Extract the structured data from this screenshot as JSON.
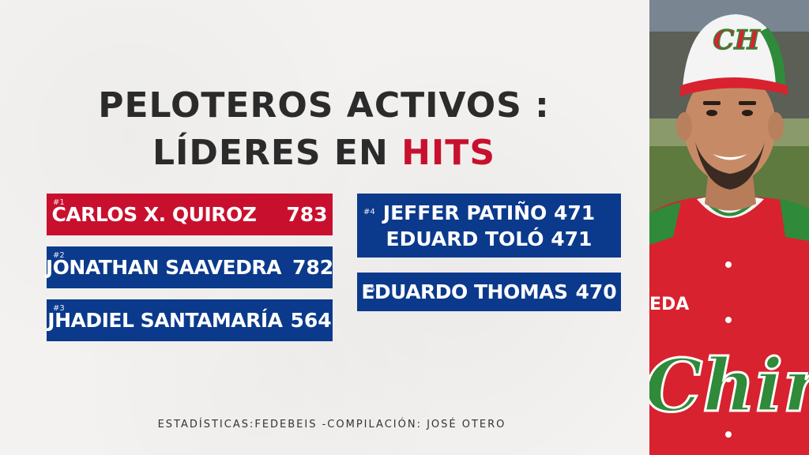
{
  "title": {
    "line1": "PELOTEROS ACTIVOS :",
    "line2_prefix": "LÍDERES EN ",
    "line2_accent": "HITS"
  },
  "leaders": [
    {
      "rank": "#1",
      "name": "CARLOS X. QUIROZ",
      "value": "783"
    },
    {
      "rank": "#2",
      "name": "JONATHAN SAAVEDRA",
      "value": "782"
    },
    {
      "rank": "#3",
      "name": "JHADIEL SANTAMARÍA",
      "value": "564"
    },
    {
      "rank": "#4",
      "line1": "JEFFER PATIÑO 471",
      "line2": "EDUARD TOLÓ 471"
    },
    {
      "rank": "#5",
      "name": "EDUARDO THOMAS",
      "value": "470"
    }
  ],
  "footer": "ESTADÍSTICAS:FEDEBEIS -COMPILACIÓN: JOSÉ OTERO",
  "photo": {
    "cap_logo": "CH",
    "jersey_text": "Chiriqu",
    "sleeve_text": "EDA"
  },
  "colors": {
    "accent_red": "#c8102e",
    "card_blue": "#0b3a8c",
    "card_red": "#c8102e",
    "title": "#2b2b2b"
  }
}
